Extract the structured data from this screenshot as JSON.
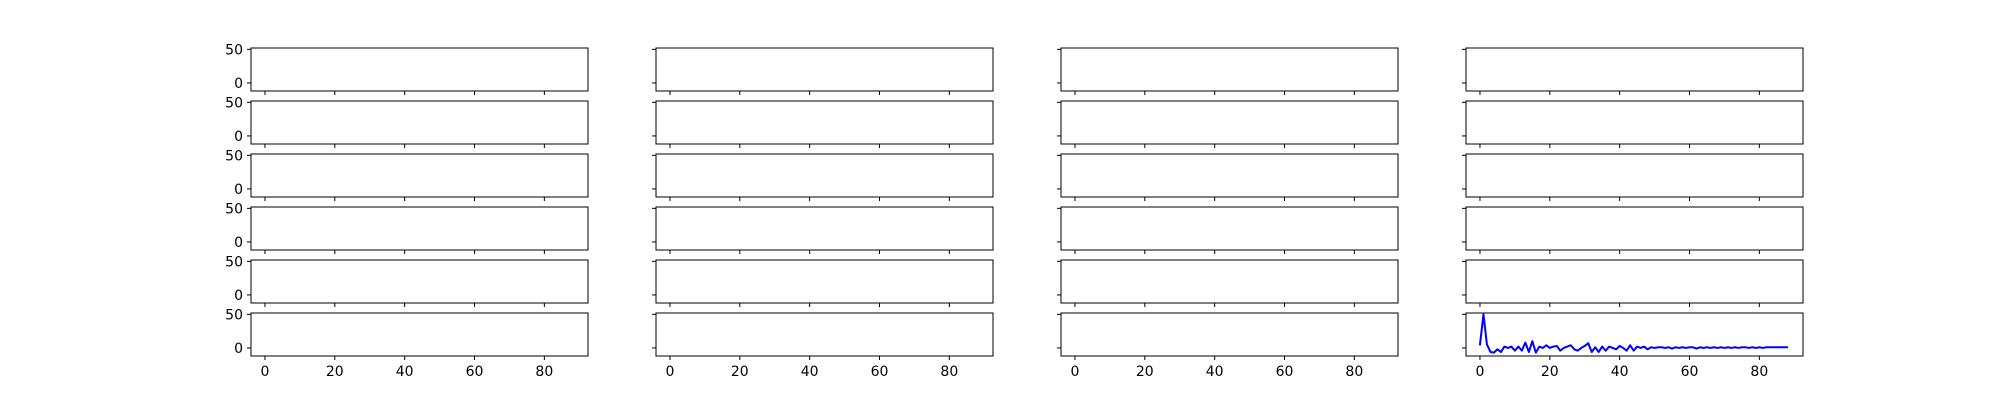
{
  "chart_data": {
    "type": "line",
    "grid": false,
    "layout": {
      "rows": 6,
      "cols": 4,
      "sharex": true,
      "sharey": true
    },
    "xlim": [
      -4,
      92.5
    ],
    "ylim": [
      -12,
      52
    ],
    "xticks": [
      0,
      20,
      40,
      60,
      80
    ],
    "yticks": [
      0,
      50
    ],
    "xtick_labels": [
      "0",
      "20",
      "40",
      "60",
      "80"
    ],
    "ytick_labels": [
      "0",
      "50"
    ],
    "series_color": "#0000ff",
    "subplots": [
      {
        "row": 5,
        "col": 3,
        "series": [
          {
            "x": [
              0,
              1,
              2,
              3,
              4,
              5,
              6,
              7,
              8,
              9,
              10,
              11,
              12,
              13,
              14,
              15,
              16,
              17,
              18,
              19,
              20,
              21,
              22,
              23,
              24,
              25,
              26,
              27,
              28,
              29,
              30,
              31,
              32,
              33,
              34,
              35,
              36,
              37,
              38,
              39,
              40,
              41,
              42,
              43,
              44,
              45,
              46,
              47,
              48,
              49,
              50,
              51,
              52,
              53,
              54,
              55,
              56,
              57,
              58,
              59,
              60,
              61,
              62,
              63,
              64,
              65,
              66,
              67,
              68,
              69,
              70,
              71,
              72,
              73,
              74,
              75,
              76,
              77,
              78,
              79,
              80,
              81,
              82,
              83,
              84,
              85,
              86,
              87,
              88
            ],
            "y": [
              5,
              50,
              5,
              -6,
              -7,
              -2,
              -6,
              2,
              0,
              2,
              -4,
              2,
              -4,
              8,
              -6,
              10,
              -7,
              2,
              0,
              4,
              0,
              2,
              3,
              -4,
              0,
              2,
              4,
              -2,
              -4,
              0,
              3,
              7,
              -6,
              1,
              -6,
              2,
              -4,
              2,
              0,
              -2,
              3,
              0,
              -4,
              4,
              -4,
              2,
              0,
              2,
              -2,
              1,
              0,
              1,
              1,
              0,
              1,
              -1,
              1,
              0,
              1,
              0,
              1,
              1,
              -1,
              1,
              0,
              1,
              0,
              1,
              0,
              1,
              0,
              1,
              0,
              1,
              0,
              1,
              1,
              0,
              1,
              0,
              1,
              0,
              1,
              1,
              1,
              1,
              1,
              1,
              1
            ]
          }
        ]
      }
    ]
  }
}
